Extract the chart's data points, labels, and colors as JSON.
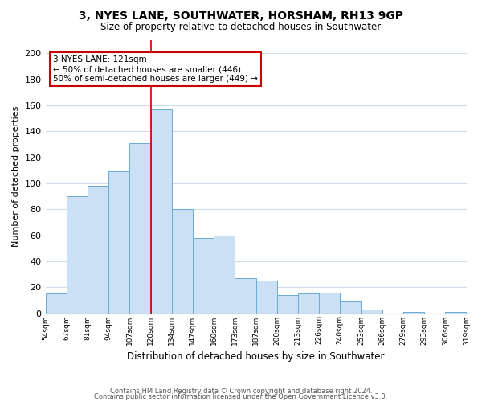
{
  "title": "3, NYES LANE, SOUTHWATER, HORSHAM, RH13 9GP",
  "subtitle": "Size of property relative to detached houses in Southwater",
  "xlabel": "Distribution of detached houses by size in Southwater",
  "ylabel": "Number of detached properties",
  "bar_color": "#cce0f5",
  "bar_edge_color": "#6aaad4",
  "bin_labels": [
    "54sqm",
    "67sqm",
    "81sqm",
    "94sqm",
    "107sqm",
    "120sqm",
    "134sqm",
    "147sqm",
    "160sqm",
    "173sqm",
    "187sqm",
    "200sqm",
    "213sqm",
    "226sqm",
    "240sqm",
    "253sqm",
    "266sqm",
    "279sqm",
    "293sqm",
    "306sqm",
    "319sqm"
  ],
  "bar_heights": [
    15,
    90,
    98,
    109,
    131,
    157,
    80,
    58,
    60,
    27,
    25,
    14,
    15,
    16,
    9,
    3,
    0,
    1,
    0,
    1
  ],
  "ylim": [
    0,
    210
  ],
  "yticks": [
    0,
    20,
    40,
    60,
    80,
    100,
    120,
    140,
    160,
    180,
    200
  ],
  "property_line_bin": 5,
  "annotation_line1": "3 NYES LANE: 121sqm",
  "annotation_line2": "← 50% of detached houses are smaller (446)",
  "annotation_line3": "50% of semi-detached houses are larger (449) →",
  "footer1": "Contains HM Land Registry data © Crown copyright and database right 2024.",
  "footer2": "Contains public sector information licensed under the Open Government Licence v3.0.",
  "grid_color": "#d0dde8",
  "grid_alpha": 1.0,
  "property_line_color": "#cc0000",
  "annotation_box_edge_color": "#cc0000",
  "background_color": "#ffffff",
  "title_fontsize": 10,
  "subtitle_fontsize": 8.5,
  "ylabel_fontsize": 8,
  "xlabel_fontsize": 8.5,
  "ytick_fontsize": 8,
  "xtick_fontsize": 6.5,
  "footer_fontsize": 6,
  "annotation_fontsize": 7.5
}
